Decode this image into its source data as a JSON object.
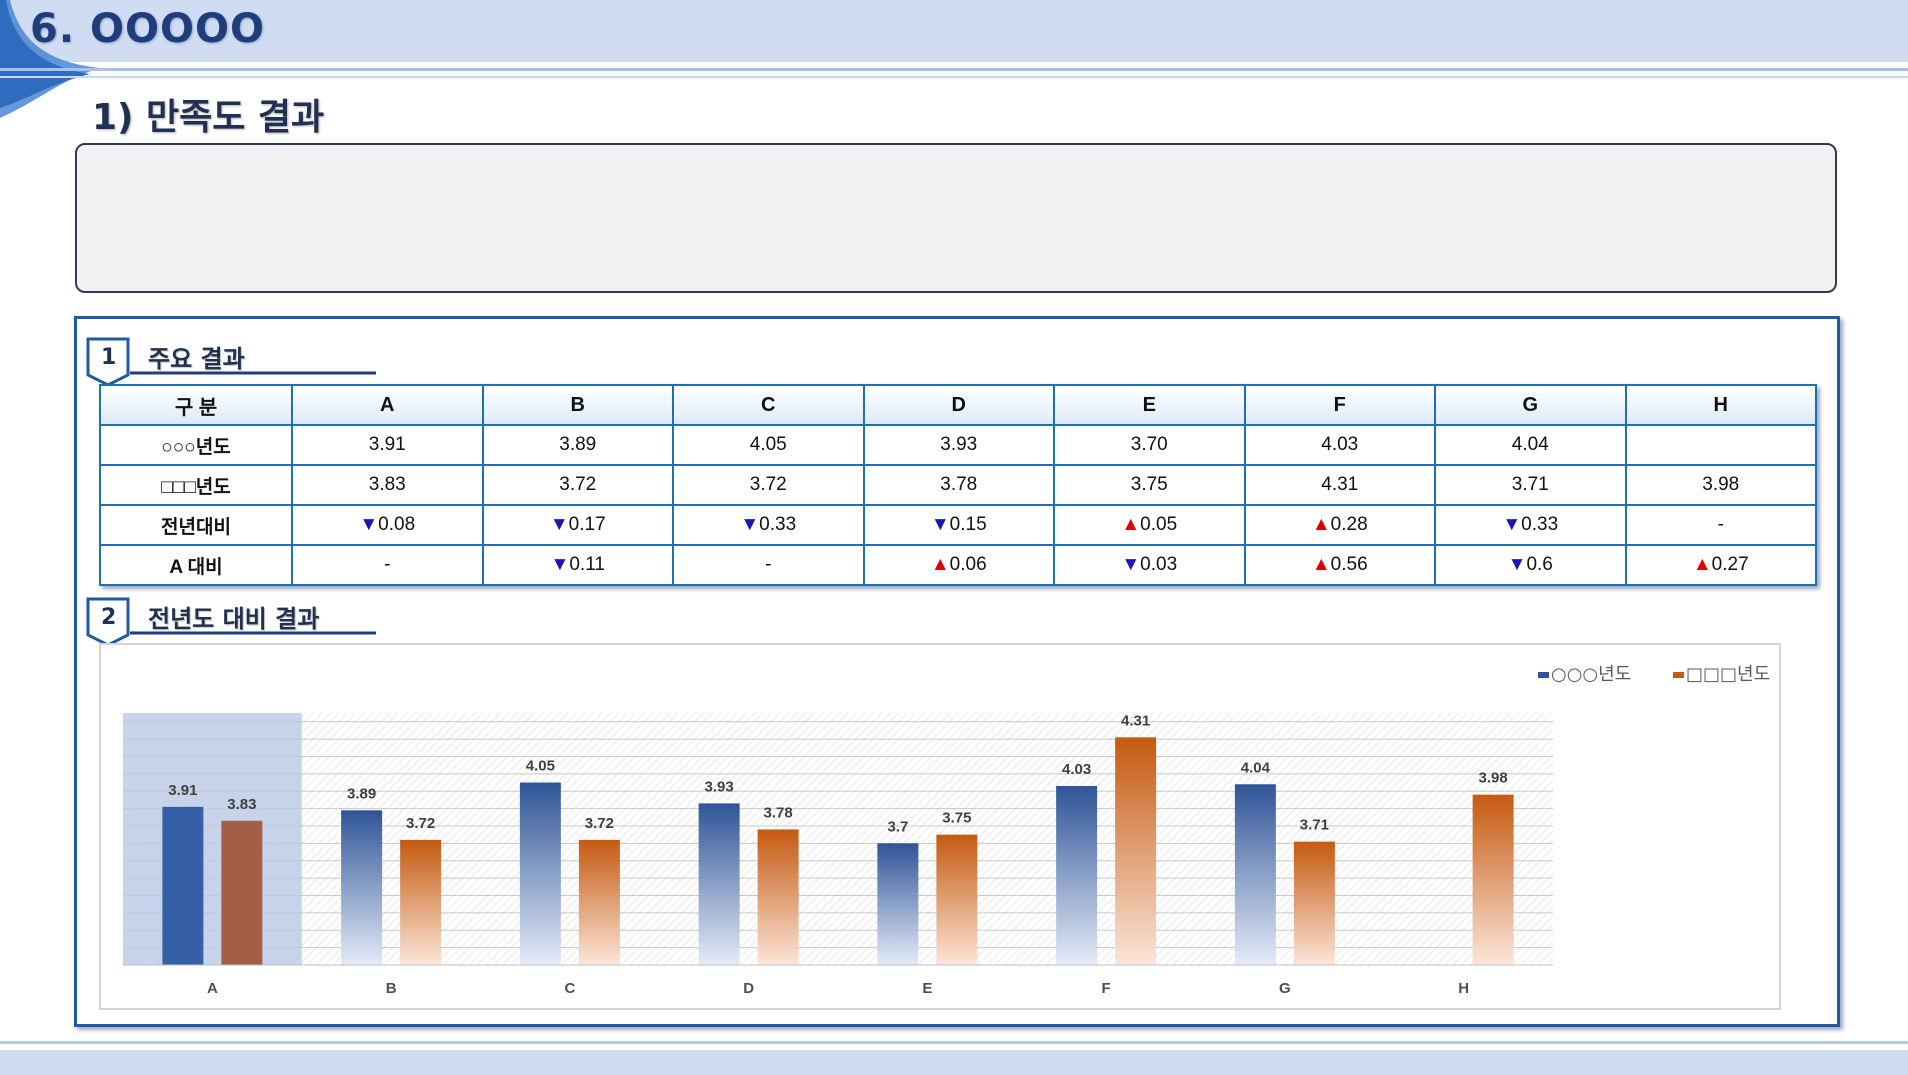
{
  "header": {
    "section_title": "6. OOOOO",
    "sub_title": "1) 만족도 결과"
  },
  "summary": {
    "text": ""
  },
  "badges": [
    {
      "num": "1",
      "label": "주요 결과"
    },
    {
      "num": "2",
      "label": "전년도 대비 결과"
    }
  ],
  "table": {
    "headers": [
      "구 분",
      "A",
      "B",
      "C",
      "D",
      "E",
      "F",
      "G",
      "H"
    ],
    "rows": [
      {
        "label": "○○○년도",
        "cells": [
          {
            "text": "3.91"
          },
          {
            "text": "3.89"
          },
          {
            "text": "4.05"
          },
          {
            "text": "3.93"
          },
          {
            "text": "3.70"
          },
          {
            "text": "4.03"
          },
          {
            "text": "4.04"
          },
          {
            "text": ""
          }
        ]
      },
      {
        "label": "□□□년도",
        "cells": [
          {
            "text": "3.83"
          },
          {
            "text": "3.72"
          },
          {
            "text": "3.72"
          },
          {
            "text": "3.78"
          },
          {
            "text": "3.75"
          },
          {
            "text": "4.31"
          },
          {
            "text": "3.71"
          },
          {
            "text": "3.98"
          }
        ]
      },
      {
        "label": "전년대비",
        "cells": [
          {
            "dir": "down",
            "text": "0.08"
          },
          {
            "dir": "down",
            "text": "0.17"
          },
          {
            "dir": "down",
            "text": "0.33"
          },
          {
            "dir": "down",
            "text": "0.15"
          },
          {
            "dir": "up",
            "text": "0.05"
          },
          {
            "dir": "up",
            "text": "0.28"
          },
          {
            "dir": "down",
            "text": "0.33"
          },
          {
            "text": "-"
          }
        ]
      },
      {
        "label": "A 대비",
        "cells": [
          {
            "text": "-"
          },
          {
            "dir": "down",
            "text": "0.11"
          },
          {
            "text": "-"
          },
          {
            "dir": "up",
            "text": "0.06"
          },
          {
            "dir": "down",
            "text": "0.03"
          },
          {
            "dir": "up",
            "text": "0.56"
          },
          {
            "dir": "down",
            "text": "0.6"
          },
          {
            "dir": "up",
            "text": "0.27"
          }
        ]
      }
    ]
  },
  "chart_data": {
    "type": "bar",
    "categories": [
      "A",
      "B",
      "C",
      "D",
      "E",
      "F",
      "G",
      "H"
    ],
    "series": [
      {
        "name": "○○○년도",
        "color": "#2f5597",
        "values": [
          3.91,
          3.89,
          4.05,
          3.93,
          3.7,
          4.03,
          4.04,
          null
        ]
      },
      {
        "name": "□□□년도",
        "color": "#c55a11",
        "values": [
          3.83,
          3.72,
          3.72,
          3.78,
          3.75,
          4.31,
          3.71,
          3.98
        ]
      }
    ],
    "data_labels": true,
    "legend": "top-right",
    "highlight_category": "A",
    "ylim": [
      3.0,
      4.45
    ],
    "grid": true
  }
}
